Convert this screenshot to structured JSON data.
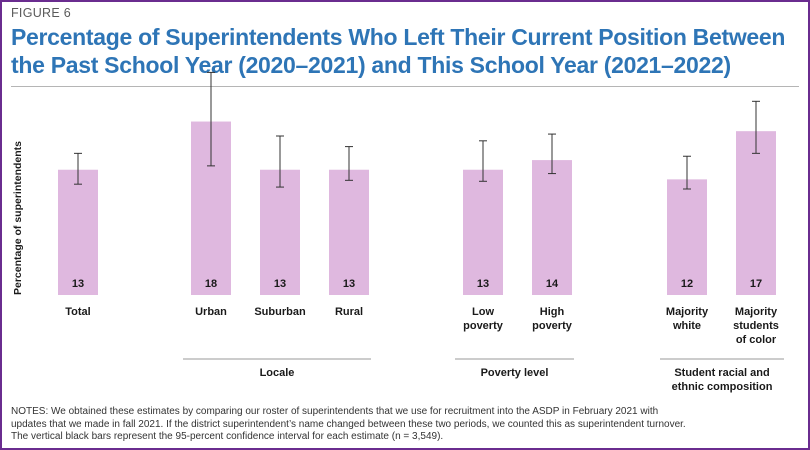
{
  "figure_label": "FIGURE 6",
  "title_line1": "Percentage of Superintendents Who Left Their Current Position Between",
  "title_line2": "the Past School Year (2020–2021) and This School Year (2021–2022)",
  "notes_line1": "NOTES: We obtained these estimates by comparing our roster of superintendents that we use for recruitment into the ASDP in February 2021 with",
  "notes_line2": "updates that we made in fall 2021. If the district superintendent’s name changed between these two periods, we counted this as superintendent turnover.",
  "notes_line3": "The vertical black bars represent the 95-percent confidence interval for each estimate (n = 3,549).",
  "colors": {
    "bar": "#dfb8df",
    "title": "#2e75b6",
    "frame": "#6a2c8f",
    "error_bar": "#333333"
  },
  "chart_data": {
    "type": "bar",
    "ylabel": "Percentage of superintendents",
    "ylim": [
      0,
      22
    ],
    "grid": false,
    "categories": [
      [
        "Total"
      ],
      [
        "Urban"
      ],
      [
        "Suburban"
      ],
      [
        "Rural"
      ],
      [
        "Low",
        "poverty"
      ],
      [
        "High",
        "poverty"
      ],
      [
        "Majority",
        "white"
      ],
      [
        "Majority",
        "students",
        "of color"
      ]
    ],
    "values": [
      13,
      18,
      13,
      13,
      13,
      14,
      12,
      17
    ],
    "value_labels": [
      "13",
      "18",
      "13",
      "13",
      "13",
      "14",
      "12",
      "17"
    ],
    "ci_low": [
      11.5,
      13.4,
      11.2,
      11.9,
      11.8,
      12.6,
      11.0,
      14.7
    ],
    "ci_high": [
      14.7,
      23.1,
      16.5,
      15.4,
      16.0,
      16.7,
      14.4,
      20.1
    ],
    "groups": [
      {
        "label": [],
        "members": [
          0
        ]
      },
      {
        "label": [
          "Locale"
        ],
        "members": [
          1,
          2,
          3
        ]
      },
      {
        "label": [
          "Poverty level"
        ],
        "members": [
          4,
          5
        ]
      },
      {
        "label": [
          "Student racial and",
          "ethnic composition"
        ],
        "members": [
          6,
          7
        ]
      }
    ]
  }
}
